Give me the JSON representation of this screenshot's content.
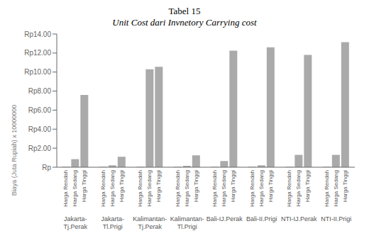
{
  "chart_data": {
    "type": "bar",
    "title": "Tabel 15",
    "subtitle": "Unit Cost dari Invnetory Carrying cost",
    "y_label": "Biaya (Juta Rupiah)  x 10000000",
    "categories": [
      "Jakarta-\nTj.Perak",
      "Jakarta-\nTl.Prigi",
      "Kalimantan-\nTj.Perak",
      "Kalimantan-\nTl.Prigi",
      "Bali-IJ.Perak",
      "Bali-II.Prigi",
      "NTI-IJ.Perak",
      "NTI-II.Prigi"
    ],
    "series": [
      {
        "name": "Harga Rendah",
        "color": "#aaaaaa",
        "values": [
          0.05,
          0.05,
          0.05,
          0.05,
          0.05,
          0.05,
          0.05,
          0.05
        ]
      },
      {
        "name": "Harga Sedang",
        "color": "#aaaaaa",
        "values": [
          0.85,
          0.2,
          10.3,
          0.15,
          0.65,
          0.2,
          1.3,
          1.3
        ]
      },
      {
        "name": "Harga Tinggi",
        "color": "#aaaaaa",
        "values": [
          7.6,
          1.1,
          10.55,
          1.25,
          12.25,
          12.6,
          11.8,
          13.15
        ]
      }
    ],
    "ylim": [
      0,
      14.0
    ],
    "yticks": [
      {
        "value": 0,
        "label": "Rp"
      },
      {
        "value": 2.0,
        "label": "Rp2.00"
      },
      {
        "value": 4.0,
        "label": "Rp4.00"
      },
      {
        "value": 6.0,
        "label": "Rp6.00"
      },
      {
        "value": 8.0,
        "label": "Rp8.00"
      },
      {
        "value": 10.0,
        "label": "Rp10.00"
      },
      {
        "value": 12.0,
        "label": "Rp12.00"
      },
      {
        "value": 14.0,
        "label": "Rp14.00"
      }
    ]
  }
}
